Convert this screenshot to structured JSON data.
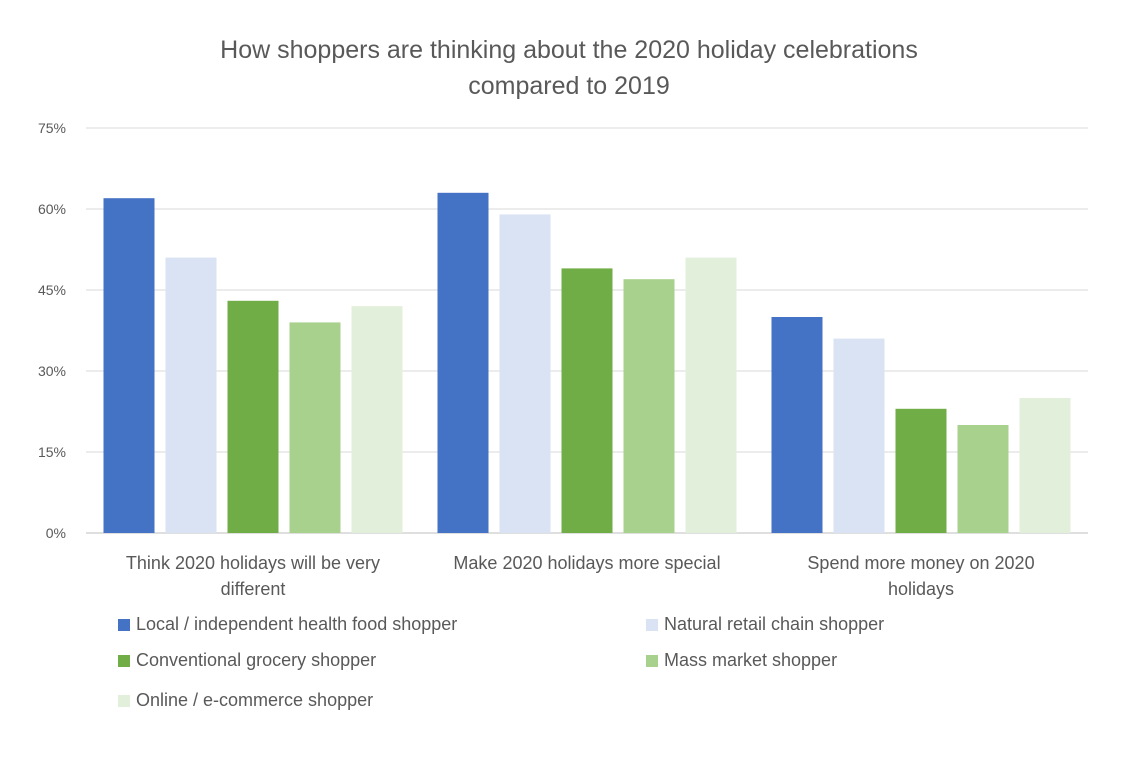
{
  "chart_data": {
    "type": "bar",
    "title_lines": [
      "How shoppers are thinking about the 2020 holiday celebrations",
      "compared to 2019"
    ],
    "categories": [
      [
        "Think 2020 holidays will be very",
        "different"
      ],
      [
        "Make 2020 holidays more special"
      ],
      [
        "Spend more money on 2020",
        "holidays"
      ]
    ],
    "series": [
      {
        "name": "Local / independent health food shopper",
        "color": "#4472C4",
        "values": [
          62,
          63,
          40
        ]
      },
      {
        "name": "Natural retail chain shopper",
        "color": "#DAE3F3",
        "values": [
          51,
          59,
          36
        ]
      },
      {
        "name": "Conventional grocery shopper",
        "color": "#70AD47",
        "values": [
          43,
          49,
          23
        ]
      },
      {
        "name": "Mass market shopper",
        "color": "#A9D18E",
        "values": [
          39,
          47,
          20
        ]
      },
      {
        "name": "Online / e-commerce shopper",
        "color": "#E2EFDA",
        "values": [
          42,
          51,
          25
        ]
      }
    ],
    "yticks": [
      "0%",
      "15%",
      "30%",
      "45%",
      "60%",
      "75%"
    ],
    "ylim": [
      0,
      75
    ],
    "grid": true,
    "legend_position": "bottom"
  }
}
